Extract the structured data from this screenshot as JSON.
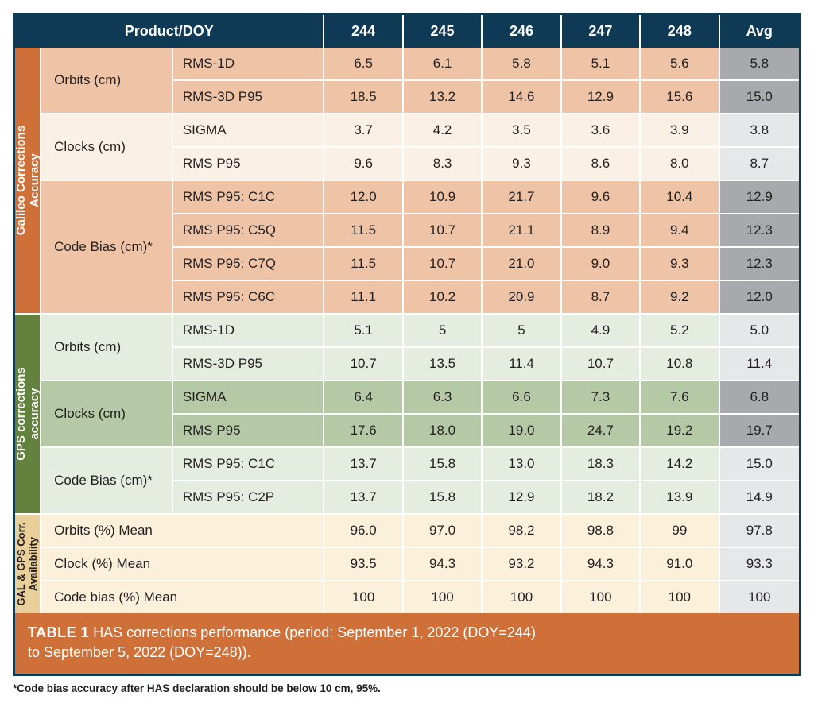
{
  "header": {
    "product_doy": "Product/DOY",
    "days": [
      "244",
      "245",
      "246",
      "247",
      "248"
    ],
    "avg": "Avg"
  },
  "sections": {
    "galileo": {
      "side_label": "Galileo Corrections\nAccuracy",
      "color": "#cf7039",
      "groups": [
        {
          "label": "Orbits (cm)",
          "shade": "dark",
          "rows": [
            {
              "metric": "RMS-1D",
              "vals": [
                "6.5",
                "6.1",
                "5.8",
                "5.1",
                "5.6"
              ],
              "avg": "5.8",
              "avg_shade": "d"
            },
            {
              "metric": "RMS-3D P95",
              "vals": [
                "18.5",
                "13.2",
                "14.6",
                "12.9",
                "15.6"
              ],
              "avg": "15.0",
              "avg_shade": "d"
            }
          ]
        },
        {
          "label": "Clocks (cm)",
          "shade": "light",
          "rows": [
            {
              "metric": "SIGMA",
              "vals": [
                "3.7",
                "4.2",
                "3.5",
                "3.6",
                "3.9"
              ],
              "avg": "3.8",
              "avg_shade": "l"
            },
            {
              "metric": "RMS P95",
              "vals": [
                "9.6",
                "8.3",
                "9.3",
                "8.6",
                "8.0"
              ],
              "avg": "8.7",
              "avg_shade": "l"
            }
          ]
        },
        {
          "label": "Code Bias (cm)*",
          "shade": "dark",
          "rows": [
            {
              "metric": "RMS P95: C1C",
              "vals": [
                "12.0",
                "10.9",
                "21.7",
                "9.6",
                "10.4"
              ],
              "avg": "12.9",
              "avg_shade": "d"
            },
            {
              "metric": "RMS P95: C5Q",
              "vals": [
                "11.5",
                "10.7",
                "21.1",
                "8.9",
                "9.4"
              ],
              "avg": "12.3",
              "avg_shade": "d"
            },
            {
              "metric": "RMS P95: C7Q",
              "vals": [
                "11.5",
                "10.7",
                "21.0",
                "9.0",
                "9.3"
              ],
              "avg": "12.3",
              "avg_shade": "d"
            },
            {
              "metric": "RMS P95: C6C",
              "vals": [
                "11.1",
                "10.2",
                "20.9",
                "8.7",
                "9.2"
              ],
              "avg": "12.0",
              "avg_shade": "d"
            }
          ]
        }
      ]
    },
    "gps": {
      "side_label": "GPS corrections\naccuracy",
      "color": "#62823e",
      "groups": [
        {
          "label": "Orbits (cm)",
          "shade": "light",
          "rows": [
            {
              "metric": "RMS-1D",
              "vals": [
                "5.1",
                "5",
                "5",
                "4.9",
                "5.2"
              ],
              "avg": "5.0",
              "avg_shade": "l"
            },
            {
              "metric": "RMS-3D P95",
              "vals": [
                "10.7",
                "13.5",
                "11.4",
                "10.7",
                "10.8"
              ],
              "avg": "11.4",
              "avg_shade": "l"
            }
          ]
        },
        {
          "label": "Clocks (cm)",
          "shade": "dark",
          "rows": [
            {
              "metric": "SIGMA",
              "vals": [
                "6.4",
                "6.3",
                "6.6",
                "7.3",
                "7.6"
              ],
              "avg": "6.8",
              "avg_shade": "d"
            },
            {
              "metric": "RMS P95",
              "vals": [
                "17.6",
                "18.0",
                "19.0",
                "24.7",
                "19.2"
              ],
              "avg": "19.7",
              "avg_shade": "d"
            }
          ]
        },
        {
          "label": "Code Bias (cm)*",
          "shade": "light",
          "rows": [
            {
              "metric": "RMS P95: C1C",
              "vals": [
                "13.7",
                "15.8",
                "13.0",
                "18.3",
                "14.2"
              ],
              "avg": "15.0",
              "avg_shade": "l"
            },
            {
              "metric": "RMS P95: C2P",
              "vals": [
                "13.7",
                "15.8",
                "12.9",
                "18.2",
                "13.9"
              ],
              "avg": "14.9",
              "avg_shade": "l"
            }
          ]
        }
      ]
    },
    "availability": {
      "side_label": "GAL & GPS Corr.\nAvailability",
      "color": "#e9cf9a",
      "rows": [
        {
          "metric": "Orbits (%) Mean",
          "vals": [
            "96.0",
            "97.0",
            "98.2",
            "98.8",
            "99"
          ],
          "avg": "97.8",
          "avg_shade": "l"
        },
        {
          "metric": "Clock (%) Mean",
          "vals": [
            "93.5",
            "94.3",
            "93.2",
            "94.3",
            "91.0"
          ],
          "avg": "93.3",
          "avg_shade": "l"
        },
        {
          "metric": "Code bias (%) Mean",
          "vals": [
            "100",
            "100",
            "100",
            "100",
            "100"
          ],
          "avg": "100",
          "avg_shade": "l"
        }
      ]
    }
  },
  "caption": {
    "label": "TABLE 1",
    "text_l1": "  HAS corrections performance (period: September 1, 2022 (DOY=244)",
    "text_l2": "to September 5, 2022 (DOY=248))."
  },
  "footnote": "*Code bias accuracy after HAS declaration should be below 10 cm, 95%.",
  "style": {
    "header_bg": "#0e3a56",
    "gal_dark": "#efc3a6",
    "gal_light": "#fbf0e6",
    "gps_light": "#e5ede0",
    "gps_dark": "#b5c9a6",
    "avail_bg": "#fbf1db",
    "avg_dark": "#a7a9ac",
    "avg_light": "#e6e7e8",
    "grid": "#ffffff",
    "font": "Myriad Pro"
  }
}
